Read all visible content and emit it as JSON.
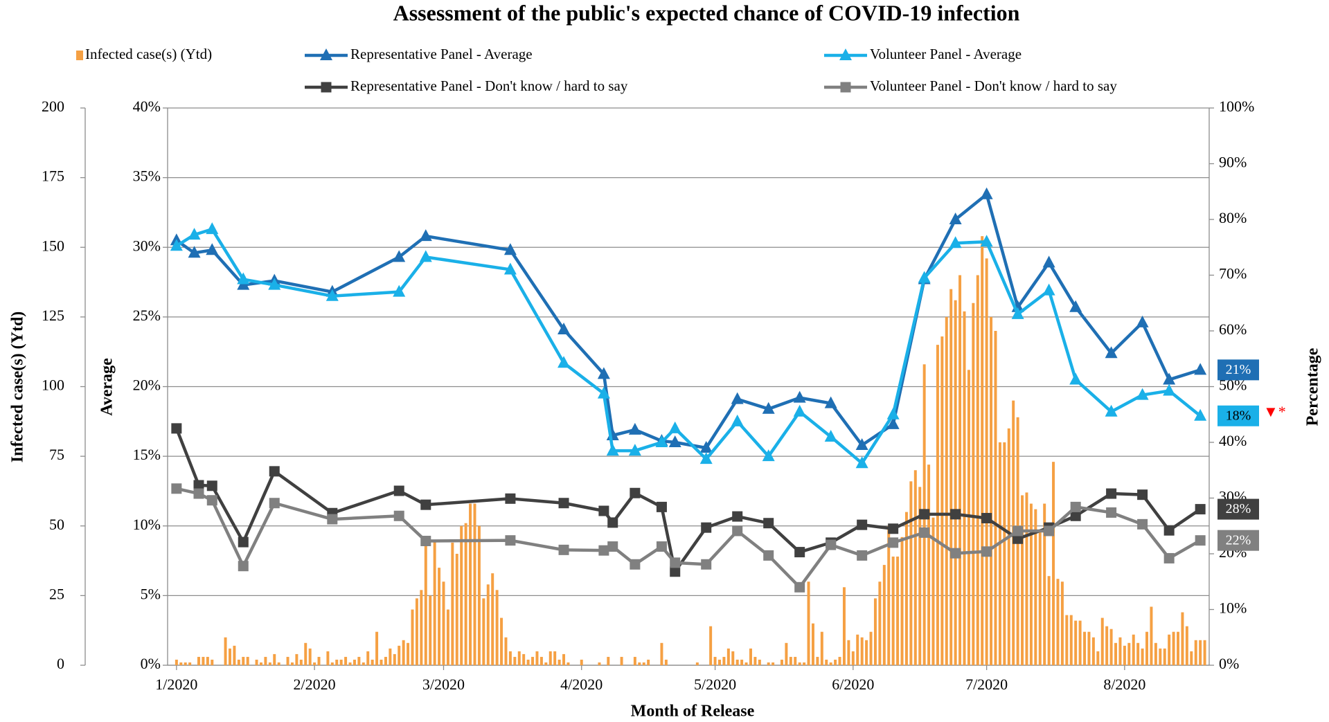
{
  "chart_data": {
    "type": "combo",
    "title": "Assessment of the public's expected chance of COVID-19 infection",
    "x_label": "Month of Release",
    "y_label": "Infected case(s) (Ytd)",
    "y2_label": "Average",
    "y3_label": "Percentage",
    "xlim": [
      -2,
      232
    ],
    "xticks": [
      {
        "value": 0,
        "label": "1/2020"
      },
      {
        "value": 31,
        "label": "2/2020"
      },
      {
        "value": 60,
        "label": "3/2020"
      },
      {
        "value": 91,
        "label": "4/2020"
      },
      {
        "value": 121,
        "label": "5/2020"
      },
      {
        "value": 152,
        "label": "6/2020"
      },
      {
        "value": 182,
        "label": "7/2020"
      },
      {
        "value": 213,
        "label": "8/2020"
      }
    ],
    "ylim": [
      0,
      200
    ],
    "yticks": [
      0,
      25,
      50,
      75,
      100,
      125,
      150,
      175,
      200
    ],
    "y2lim": [
      0,
      40
    ],
    "y2ticks": [
      {
        "value": 0,
        "label": "0%"
      },
      {
        "value": 5,
        "label": "5%"
      },
      {
        "value": 10,
        "label": "10%"
      },
      {
        "value": 15,
        "label": "15%"
      },
      {
        "value": 20,
        "label": "20%"
      },
      {
        "value": 25,
        "label": "25%"
      },
      {
        "value": 30,
        "label": "30%"
      },
      {
        "value": 35,
        "label": "35%"
      },
      {
        "value": 40,
        "label": "40%"
      }
    ],
    "y3lim": [
      0,
      100
    ],
    "y3ticks": [
      {
        "value": 0,
        "label": "0%"
      },
      {
        "value": 10,
        "label": "10%"
      },
      {
        "value": 20,
        "label": "20%"
      },
      {
        "value": 30,
        "label": "30%"
      },
      {
        "value": 40,
        "label": "40%"
      },
      {
        "value": 50,
        "label": "50%"
      },
      {
        "value": 60,
        "label": "60%"
      },
      {
        "value": 70,
        "label": "70%"
      },
      {
        "value": 80,
        "label": "80%"
      },
      {
        "value": 90,
        "label": "90%"
      },
      {
        "value": 100,
        "label": "100%"
      }
    ],
    "grid": true,
    "annotation": "▼*",
    "annotation_color": "#ff0000",
    "series": [
      {
        "name": "Infected case(s) (Ytd)",
        "type": "bar",
        "axis": "y",
        "color": "#f5a043",
        "x": [
          0,
          1,
          2,
          3,
          4,
          5,
          6,
          7,
          8,
          9,
          10,
          11,
          12,
          13,
          14,
          15,
          16,
          17,
          18,
          19,
          20,
          21,
          22,
          23,
          24,
          25,
          26,
          27,
          28,
          29,
          30,
          31,
          32,
          33,
          34,
          35,
          36,
          37,
          38,
          39,
          40,
          41,
          42,
          43,
          44,
          45,
          46,
          47,
          48,
          49,
          50,
          51,
          52,
          53,
          54,
          55,
          56,
          57,
          58,
          59,
          60,
          61,
          62,
          63,
          64,
          65,
          66,
          67,
          68,
          69,
          70,
          71,
          72,
          73,
          74,
          75,
          76,
          77,
          78,
          79,
          80,
          81,
          82,
          83,
          84,
          85,
          86,
          87,
          88,
          89,
          90,
          91,
          92,
          93,
          94,
          95,
          96,
          97,
          98,
          99,
          100,
          101,
          102,
          103,
          104,
          105,
          106,
          107,
          108,
          109,
          110,
          111,
          112,
          113,
          114,
          115,
          116,
          117,
          118,
          119,
          120,
          121,
          122,
          123,
          124,
          125,
          126,
          127,
          128,
          129,
          130,
          131,
          132,
          133,
          134,
          135,
          136,
          137,
          138,
          139,
          140,
          141,
          142,
          143,
          144,
          145,
          146,
          147,
          148,
          149,
          150,
          151,
          152,
          153,
          154,
          155,
          156,
          157,
          158,
          159,
          160,
          161,
          162,
          163,
          164,
          165,
          166,
          167,
          168,
          169,
          170,
          171,
          172,
          173,
          174,
          175,
          176,
          177,
          178,
          179,
          180,
          181,
          182,
          183,
          184,
          185,
          186,
          187,
          188,
          189,
          190,
          191,
          192,
          193,
          194,
          195,
          196,
          197,
          198,
          199,
          200,
          201,
          202,
          203,
          204,
          205,
          206,
          207,
          208,
          209,
          210,
          211,
          212,
          213,
          214,
          215,
          216,
          217,
          218,
          219,
          220,
          221,
          222,
          223,
          224,
          225,
          226,
          227,
          228,
          229,
          230,
          231
        ],
        "values": [
          2,
          1,
          1,
          1,
          0,
          3,
          3,
          3,
          2,
          0,
          0,
          10,
          6,
          7,
          2,
          3,
          3,
          0,
          2,
          1,
          3,
          1,
          4,
          1,
          0,
          3,
          1,
          4,
          2,
          8,
          6,
          1,
          3,
          0,
          5,
          1,
          2,
          2,
          3,
          1,
          2,
          3,
          1,
          5,
          2,
          12,
          2,
          3,
          6,
          4,
          7,
          9,
          8,
          20,
          24,
          27,
          45,
          25,
          45,
          35,
          30,
          20,
          44,
          40,
          50,
          51,
          58,
          58,
          50,
          24,
          29,
          33,
          27,
          17,
          10,
          5,
          3,
          5,
          4,
          2,
          3,
          5,
          3,
          1,
          5,
          5,
          2,
          4,
          1,
          0,
          0,
          2,
          0,
          0,
          0,
          1,
          0,
          3,
          0,
          0,
          3,
          0,
          0,
          3,
          1,
          1,
          2,
          0,
          0,
          8,
          2,
          0,
          0,
          0,
          0,
          0,
          0,
          1,
          0,
          0,
          14,
          3,
          2,
          3,
          6,
          5,
          2,
          2,
          1,
          6,
          3,
          2,
          0,
          1,
          1,
          0,
          2,
          8,
          3,
          3,
          1,
          1,
          30,
          15,
          3,
          12,
          2,
          1,
          2,
          3,
          28,
          9,
          5,
          11,
          10,
          9,
          12,
          24,
          30,
          36,
          50,
          39,
          39,
          46,
          55,
          66,
          70,
          64,
          108,
          72,
          53,
          115,
          118,
          125,
          135,
          131,
          140,
          127,
          106,
          130,
          140,
          154,
          146,
          125,
          120,
          80,
          80,
          85,
          95,
          89,
          61,
          62,
          58,
          56,
          48,
          58,
          32,
          73,
          31,
          30,
          18,
          18,
          16,
          16,
          12,
          12,
          10,
          5,
          17,
          14,
          13,
          8,
          10,
          7,
          8,
          11,
          8,
          6,
          12,
          21,
          8,
          6,
          6,
          11,
          12,
          12,
          19,
          14,
          5,
          9,
          9,
          9
        ]
      },
      {
        "name": "Representative Panel - Average",
        "type": "line",
        "marker": "triangle",
        "axis": "y2",
        "color": "#1f6fb4",
        "end_label": "21%",
        "x": [
          0,
          4,
          8,
          15,
          22,
          35,
          50,
          56,
          75,
          87,
          96,
          98,
          103,
          109,
          112,
          119,
          126,
          133,
          140,
          147,
          154,
          161,
          168,
          175,
          182,
          189,
          196,
          202,
          210,
          217,
          223,
          230
        ],
        "values": [
          30.5,
          29.6,
          29.8,
          27.3,
          27.6,
          26.8,
          29.3,
          30.8,
          29.8,
          24.1,
          20.9,
          16.5,
          16.9,
          16.1,
          16.0,
          15.6,
          19.1,
          18.4,
          19.2,
          18.8,
          15.8,
          17.3,
          27.7,
          32.0,
          33.8,
          25.7,
          28.9,
          25.7,
          22.4,
          24.6,
          20.5,
          21.2
        ]
      },
      {
        "name": "Volunteer Panel - Average",
        "type": "line",
        "marker": "triangle",
        "axis": "y2",
        "color": "#1ab0e8",
        "end_label": "18%",
        "x": [
          0,
          4,
          8,
          15,
          22,
          35,
          50,
          56,
          75,
          87,
          96,
          98,
          103,
          109,
          112,
          119,
          126,
          133,
          140,
          147,
          154,
          161,
          168,
          175,
          182,
          189,
          196,
          202,
          210,
          217,
          223,
          230
        ],
        "values": [
          30.1,
          30.9,
          31.3,
          27.7,
          27.3,
          26.5,
          26.8,
          29.3,
          28.4,
          21.7,
          19.5,
          15.4,
          15.4,
          16.0,
          17.0,
          14.8,
          17.5,
          15.0,
          18.2,
          16.4,
          14.5,
          18.0,
          27.8,
          30.3,
          30.4,
          25.2,
          26.9,
          20.5,
          18.2,
          19.4,
          19.7,
          17.9
        ]
      },
      {
        "name": "Representative Panel - Don't know / hard to say",
        "type": "line",
        "marker": "square",
        "axis": "y3",
        "color": "#404040",
        "end_label": "28%",
        "x": [
          0,
          5,
          8,
          15,
          22,
          35,
          50,
          56,
          75,
          87,
          96,
          98,
          103,
          109,
          112,
          119,
          126,
          133,
          140,
          147,
          154,
          161,
          168,
          175,
          182,
          189,
          196,
          202,
          210,
          217,
          223,
          230
        ],
        "values": [
          42.5,
          32.3,
          32.2,
          22.1,
          34.8,
          27.3,
          31.3,
          28.8,
          29.9,
          29.1,
          27.7,
          25.6,
          30.9,
          28.4,
          16.8,
          24.7,
          26.7,
          25.5,
          20.3,
          22.0,
          25.2,
          24.5,
          27.1,
          27.1,
          26.4,
          22.7,
          24.7,
          26.8,
          30.8,
          30.6,
          24.2,
          28.0
        ]
      },
      {
        "name": "Volunteer Panel - Don't know / hard to say",
        "type": "line",
        "marker": "square",
        "axis": "y3",
        "color": "#808080",
        "end_label": "22%",
        "x": [
          0,
          5,
          8,
          15,
          22,
          35,
          50,
          56,
          75,
          87,
          96,
          98,
          103,
          109,
          112,
          119,
          126,
          133,
          140,
          147,
          154,
          161,
          168,
          175,
          182,
          189,
          196,
          202,
          210,
          217,
          223,
          230
        ],
        "values": [
          31.7,
          30.8,
          29.6,
          17.8,
          29.1,
          26.2,
          26.8,
          22.3,
          22.4,
          20.7,
          20.6,
          21.3,
          18.1,
          21.3,
          18.4,
          18.1,
          24.1,
          19.7,
          14.0,
          21.6,
          19.7,
          22.0,
          23.8,
          20.1,
          20.4,
          24.1,
          24.1,
          28.4,
          27.4,
          25.3,
          19.2,
          22.4
        ]
      }
    ]
  }
}
